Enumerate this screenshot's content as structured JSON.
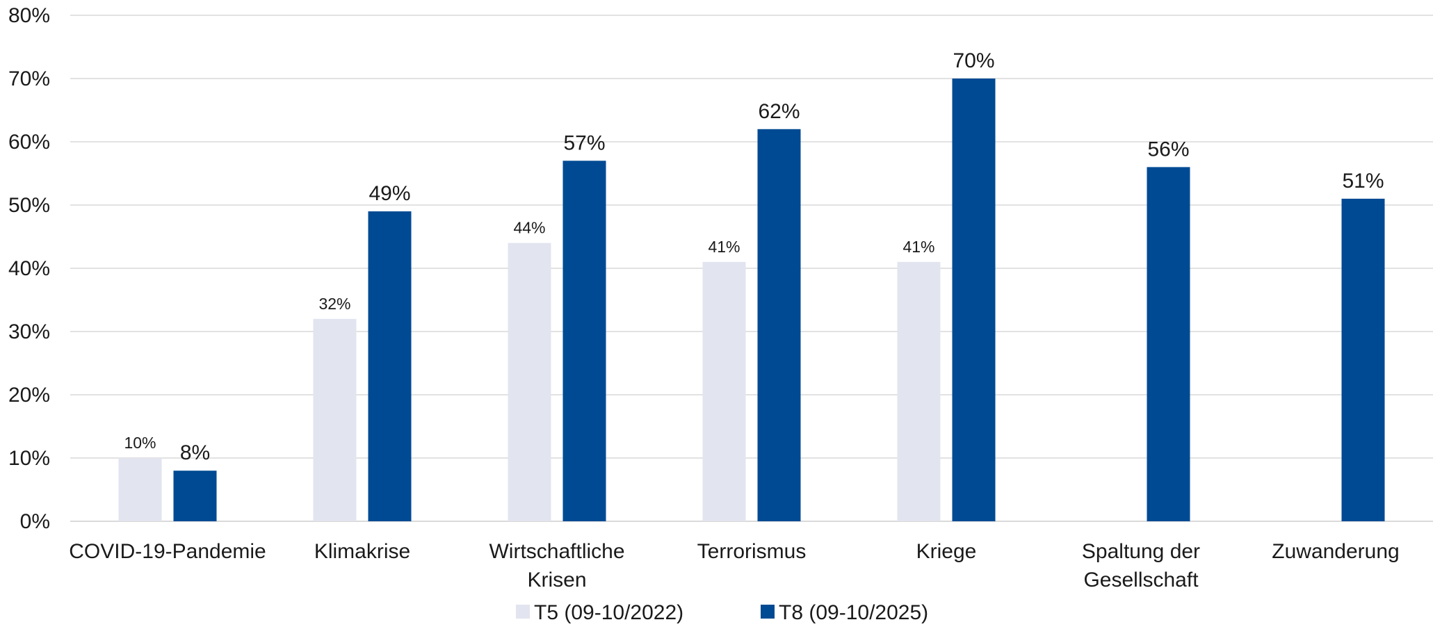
{
  "chart_data": {
    "type": "bar",
    "categories": [
      [
        "COVID-19-Pandemie"
      ],
      [
        "Klimakrise"
      ],
      [
        "Wirtschaftliche",
        "Krisen"
      ],
      [
        "Terrorismus"
      ],
      [
        "Kriege"
      ],
      [
        "Spaltung der",
        "Gesellschaft"
      ],
      [
        "Zuwanderung"
      ]
    ],
    "series": [
      {
        "name": "T5 (09-10/2022)",
        "color": "#e2e4ef",
        "values": [
          10,
          32,
          44,
          41,
          41,
          null,
          null
        ],
        "labels": [
          "10%",
          "32%",
          "44%",
          "41%",
          "41%",
          null,
          null
        ]
      },
      {
        "name": "T8 (09-10/2025)",
        "color": "#004a93",
        "values": [
          8,
          49,
          57,
          62,
          70,
          56,
          51
        ],
        "labels": [
          "8%",
          "49%",
          "57%",
          "62%",
          "70%",
          "56%",
          "51%"
        ]
      }
    ],
    "y_ticks": [
      "0%",
      "10%",
      "20%",
      "30%",
      "40%",
      "50%",
      "60%",
      "70%",
      "80%"
    ],
    "ylim": [
      0,
      80
    ],
    "ylabel": "",
    "xlabel": "",
    "title": "",
    "grid": true,
    "gridline_color": "#d9d9d9",
    "legend_position": "bottom"
  }
}
